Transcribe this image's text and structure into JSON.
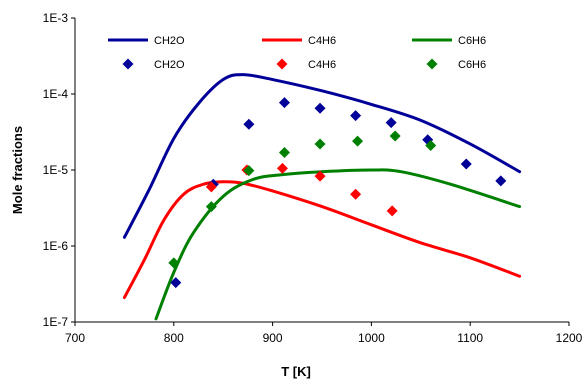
{
  "chart_data": {
    "type": "line",
    "xlabel": "T [K]",
    "ylabel": "Mole fractions",
    "xlim": [
      700,
      1200
    ],
    "ylim": [
      1e-07,
      0.001
    ],
    "yscale": "log",
    "x_ticks": [
      "700",
      "800",
      "900",
      "1000",
      "1100",
      "1200"
    ],
    "y_ticks": [
      "1E-7",
      "1E-6",
      "1E-5",
      "1E-4",
      "1E-3"
    ],
    "grid": false,
    "legend_position": "top",
    "series": [
      {
        "name": "CH2O",
        "kind": "line",
        "color": "#000099",
        "points": [
          [
            750,
            1.3e-06
          ],
          [
            775,
            5.5e-06
          ],
          [
            800,
            2.6e-05
          ],
          [
            825,
            7.5e-05
          ],
          [
            850,
            0.000155
          ],
          [
            870,
            0.00018
          ],
          [
            900,
            0.000155
          ],
          [
            950,
            0.00011
          ],
          [
            1000,
            7.3e-05
          ],
          [
            1050,
            4.5e-05
          ],
          [
            1100,
            2.2e-05
          ],
          [
            1150,
            9.5e-06
          ]
        ]
      },
      {
        "name": "C4H6",
        "kind": "line",
        "color": "#ff0000",
        "points": [
          [
            750,
            2.1e-07
          ],
          [
            770,
            6.5e-07
          ],
          [
            790,
            2.2e-06
          ],
          [
            810,
            4.8e-06
          ],
          [
            830,
            6.5e-06
          ],
          [
            850,
            7e-06
          ],
          [
            870,
            6.7e-06
          ],
          [
            900,
            5.3e-06
          ],
          [
            950,
            3.3e-06
          ],
          [
            1000,
            1.9e-06
          ],
          [
            1050,
            1.1e-06
          ],
          [
            1100,
            7e-07
          ],
          [
            1150,
            4e-07
          ]
        ]
      },
      {
        "name": "C6H6",
        "kind": "line",
        "color": "#008000",
        "points": [
          [
            782,
            1.1e-07
          ],
          [
            800,
            4.5e-07
          ],
          [
            820,
            1.5e-06
          ],
          [
            850,
            4.5e-06
          ],
          [
            880,
            7.5e-06
          ],
          [
            910,
            8.7e-06
          ],
          [
            950,
            9.5e-06
          ],
          [
            1000,
            1e-05
          ],
          [
            1030,
            9.5e-06
          ],
          [
            1080,
            6.5e-06
          ],
          [
            1150,
            3.3e-06
          ]
        ]
      },
      {
        "name": "CH2O",
        "kind": "marker",
        "color": "#000099",
        "points": [
          [
            802,
            3.3e-07
          ],
          [
            840,
            6.5e-06
          ],
          [
            876,
            4e-05
          ],
          [
            912,
            7.7e-05
          ],
          [
            948,
            6.5e-05
          ],
          [
            984,
            5.2e-05
          ],
          [
            1020,
            4.2e-05
          ],
          [
            1057,
            2.5e-05
          ],
          [
            1096,
            1.2e-05
          ],
          [
            1131,
            7.2e-06
          ]
        ]
      },
      {
        "name": "C4H6",
        "kind": "marker",
        "color": "#ff0000",
        "points": [
          [
            838,
            6e-06
          ],
          [
            874,
            1e-05
          ],
          [
            910,
            1.05e-05
          ],
          [
            948,
            8.3e-06
          ],
          [
            984,
            4.8e-06
          ],
          [
            1021,
            2.9e-06
          ]
        ]
      },
      {
        "name": "C6H6",
        "kind": "marker",
        "color": "#008000",
        "points": [
          [
            800,
            6e-07
          ],
          [
            838,
            3.3e-06
          ],
          [
            876,
            9.8e-06
          ],
          [
            912,
            1.7e-05
          ],
          [
            948,
            2.2e-05
          ],
          [
            986,
            2.4e-05
          ],
          [
            1024,
            2.8e-05
          ],
          [
            1060,
            2.1e-05
          ]
        ]
      }
    ]
  }
}
